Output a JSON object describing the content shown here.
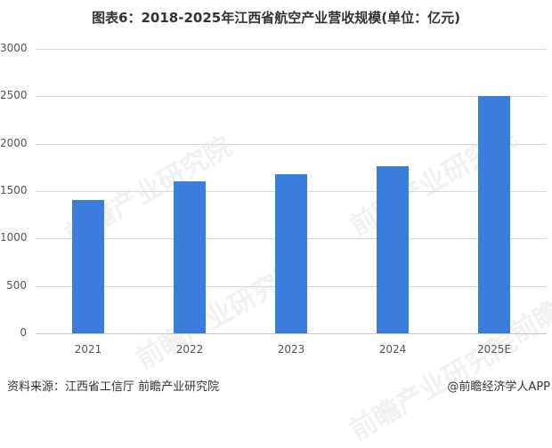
{
  "title": "图表6：2018-2025年江西省航空产业营收规模(单位：亿元)",
  "footer": {
    "source": "资料来源：江西省工信厅 前瞻产业研究院",
    "credit": "@前瞻经济学人APP"
  },
  "watermark": "前瞻产业研究院",
  "colors": {
    "bar": "#3B7DDD",
    "grid": "#d9d9d9"
  },
  "chart_data": {
    "type": "bar",
    "title": "图表6：2018-2025年江西省航空产业营收规模(单位：亿元)",
    "xlabel": "",
    "ylabel": "",
    "unit": "亿元",
    "categories": [
      "2021",
      "2022",
      "2023",
      "2024",
      "2025E"
    ],
    "values": [
      1410,
      1600,
      1680,
      1760,
      2500
    ],
    "yticks": [
      "0",
      "500",
      "1000",
      "1500",
      "2000",
      "2500",
      "3000"
    ],
    "ylim": [
      0,
      3000
    ],
    "grid": true,
    "legend": null
  }
}
